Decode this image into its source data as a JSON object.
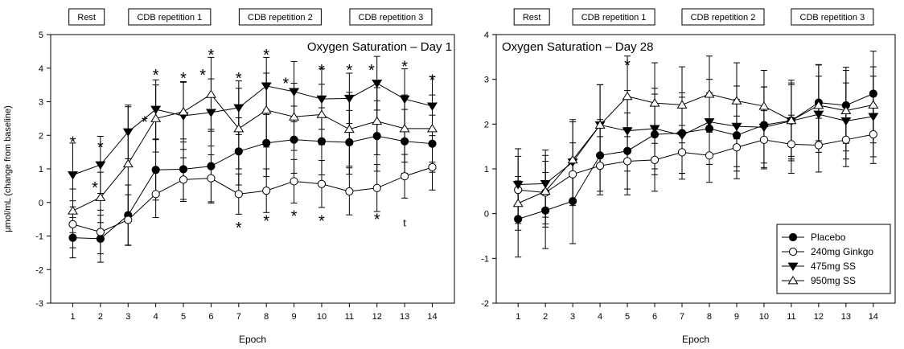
{
  "figure": {
    "y_axis_label": "μmol/mL (change from baseline)",
    "legend": [
      "Placebo",
      "240mg Ginkgo",
      "475mg SS",
      "950mg SS"
    ],
    "legend_markers": [
      "filled-circle",
      "open-circle",
      "filled-triangle-down",
      "open-triangle-up"
    ]
  },
  "chart_data": [
    {
      "type": "line",
      "title": "Oxygen Saturation – Day 1",
      "xlabel": "Epoch",
      "ylabel": "μmol/mL (change from baseline)",
      "x": [
        1,
        2,
        3,
        4,
        5,
        6,
        7,
        8,
        9,
        10,
        11,
        12,
        13,
        14
      ],
      "xlim": [
        0.2,
        14.8
      ],
      "ylim": [
        -3,
        5
      ],
      "yticks": [
        -3,
        -2,
        -1,
        0,
        1,
        2,
        3,
        4,
        5
      ],
      "grid": false,
      "phases": [
        {
          "label": "Rest",
          "center_epoch": 1.5
        },
        {
          "label": "CDB repetition 1",
          "center_epoch": 4.5
        },
        {
          "label": "CDB repetition 2",
          "center_epoch": 8.5
        },
        {
          "label": "CDB repetition 3",
          "center_epoch": 12.5
        }
      ],
      "series": [
        {
          "name": "Placebo",
          "marker": "filled-circle",
          "values": [
            -1.05,
            -1.08,
            -0.38,
            0.97,
            0.99,
            1.08,
            1.52,
            1.77,
            1.87,
            1.82,
            1.79,
            1.98,
            1.82,
            1.75
          ],
          "errors": [
            0.6,
            0.7,
            0.9,
            0.9,
            0.9,
            1.1,
            1.0,
            1.0,
            1.0,
            1.0,
            0.95,
            1.05,
            0.95,
            0.85
          ]
        },
        {
          "name": "240mg Ginkgo",
          "marker": "open-circle",
          "values": [
            -0.65,
            -0.88,
            -0.52,
            0.25,
            0.68,
            0.72,
            0.25,
            0.35,
            0.63,
            0.55,
            0.33,
            0.43,
            0.78,
            1.05
          ],
          "errors": [
            0.7,
            0.65,
            0.75,
            0.7,
            0.65,
            0.7,
            0.6,
            0.65,
            0.65,
            0.7,
            0.7,
            0.7,
            0.65,
            0.68
          ]
        },
        {
          "name": "475mg SS",
          "marker": "filled-triangle-down",
          "values": [
            0.82,
            1.12,
            2.1,
            2.77,
            2.58,
            2.68,
            2.82,
            3.47,
            3.3,
            3.08,
            3.1,
            3.55,
            3.08,
            2.87
          ],
          "errors": [
            0.95,
            0.85,
            0.8,
            0.88,
            1.0,
            1.0,
            0.8,
            0.85,
            0.9,
            0.9,
            0.75,
            0.8,
            0.9,
            0.88
          ]
        },
        {
          "name": "950mg SS",
          "marker": "open-triangle-up",
          "values": [
            -0.25,
            0.15,
            1.15,
            2.5,
            2.7,
            3.22,
            2.2,
            2.75,
            2.55,
            2.62,
            2.18,
            2.42,
            2.2,
            2.2
          ],
          "errors": [
            0.65,
            0.75,
            1.7,
            1.0,
            0.9,
            1.1,
            1.2,
            1.1,
            1.0,
            0.9,
            1.1,
            1.0,
            1.0,
            1.0
          ]
        }
      ],
      "annotations": [
        {
          "text": "*",
          "x": 1,
          "y": 1.85
        },
        {
          "text": "*",
          "x": 2,
          "y": 1.7
        },
        {
          "text": "*",
          "x": 1.8,
          "y": 0.5
        },
        {
          "text": "*",
          "x": 4,
          "y": 3.85
        },
        {
          "text": "*",
          "x": 3.6,
          "y": 2.45
        },
        {
          "text": "*",
          "x": 5,
          "y": 3.75
        },
        {
          "text": "*",
          "x": 6,
          "y": 4.45
        },
        {
          "text": "*",
          "x": 5.7,
          "y": 3.85
        },
        {
          "text": "*",
          "x": 7,
          "y": 3.75
        },
        {
          "text": "*",
          "x": 7,
          "y": -0.7
        },
        {
          "text": "*",
          "x": 8,
          "y": 4.45
        },
        {
          "text": "*",
          "x": 8,
          "y": -0.5
        },
        {
          "text": "*",
          "x": 8.7,
          "y": 3.6
        },
        {
          "text": "*",
          "x": 9,
          "y": -0.35
        },
        {
          "text": "*",
          "x": 10,
          "y": 4.0
        },
        {
          "text": "*",
          "x": 10,
          "y": -0.5
        },
        {
          "text": "*",
          "x": 11,
          "y": 4.0
        },
        {
          "text": "*",
          "x": 11.8,
          "y": 4.0
        },
        {
          "text": "*",
          "x": 12,
          "y": -0.45
        },
        {
          "text": "*",
          "x": 13,
          "y": 4.1
        },
        {
          "text": "t",
          "x": 13,
          "y": -0.62
        },
        {
          "text": "*",
          "x": 14,
          "y": 3.7
        }
      ]
    },
    {
      "type": "line",
      "title": "Oxygen Saturation – Day 28",
      "xlabel": "Epoch",
      "ylabel": "",
      "x": [
        1,
        2,
        3,
        4,
        5,
        6,
        7,
        8,
        9,
        10,
        11,
        12,
        13,
        14
      ],
      "xlim": [
        0.2,
        14.8
      ],
      "ylim": [
        -2,
        4
      ],
      "yticks": [
        -2,
        -1,
        0,
        1,
        2,
        3,
        4
      ],
      "grid": false,
      "legend_position": "bottom-right",
      "phases": [
        {
          "label": "Rest",
          "center_epoch": 1.5
        },
        {
          "label": "CDB repetition 1",
          "center_epoch": 4.5
        },
        {
          "label": "CDB repetition 2",
          "center_epoch": 8.5
        },
        {
          "label": "CDB repetition 3",
          "center_epoch": 12.5
        }
      ],
      "series": [
        {
          "name": "Placebo",
          "marker": "filled-circle",
          "values": [
            -0.12,
            0.07,
            0.28,
            1.3,
            1.4,
            1.77,
            1.8,
            1.9,
            1.75,
            1.98,
            2.08,
            2.48,
            2.42,
            2.68
          ],
          "errors": [
            0.85,
            0.85,
            0.95,
            0.8,
            0.85,
            0.9,
            0.9,
            0.8,
            0.8,
            0.85,
            0.8,
            0.85,
            0.85,
            0.95
          ]
        },
        {
          "name": "240mg Ginkgo",
          "marker": "open-circle",
          "values": [
            0.53,
            0.47,
            0.88,
            1.07,
            1.17,
            1.2,
            1.37,
            1.3,
            1.48,
            1.65,
            1.55,
            1.53,
            1.65,
            1.77
          ],
          "errors": [
            0.75,
            0.7,
            0.7,
            0.65,
            0.75,
            0.7,
            0.6,
            0.6,
            0.7,
            0.65,
            0.65,
            0.6,
            0.6,
            0.65
          ]
        },
        {
          "name": "475mg SS",
          "marker": "filled-triangle-down",
          "values": [
            0.65,
            0.67,
            1.15,
            1.98,
            1.85,
            1.9,
            1.75,
            2.05,
            1.95,
            1.93,
            2.07,
            2.22,
            2.07,
            2.17
          ],
          "errors": [
            0.8,
            0.75,
            0.9,
            0.9,
            0.9,
            0.9,
            0.85,
            0.95,
            0.9,
            0.9,
            0.85,
            0.85,
            0.85,
            0.9
          ]
        },
        {
          "name": "950mg SS",
          "marker": "open-triangle-up",
          "values": [
            0.23,
            0.5,
            1.2,
            1.98,
            2.62,
            2.47,
            2.43,
            2.67,
            2.52,
            2.4,
            2.08,
            2.42,
            2.3,
            2.43
          ],
          "errors": [
            0.6,
            0.8,
            0.9,
            0.9,
            0.9,
            0.9,
            0.85,
            0.85,
            0.85,
            0.8,
            0.9,
            0.9,
            0.9,
            0.85
          ]
        }
      ],
      "annotations": [
        {
          "text": "*",
          "x": 5,
          "y": 3.35
        }
      ]
    }
  ]
}
